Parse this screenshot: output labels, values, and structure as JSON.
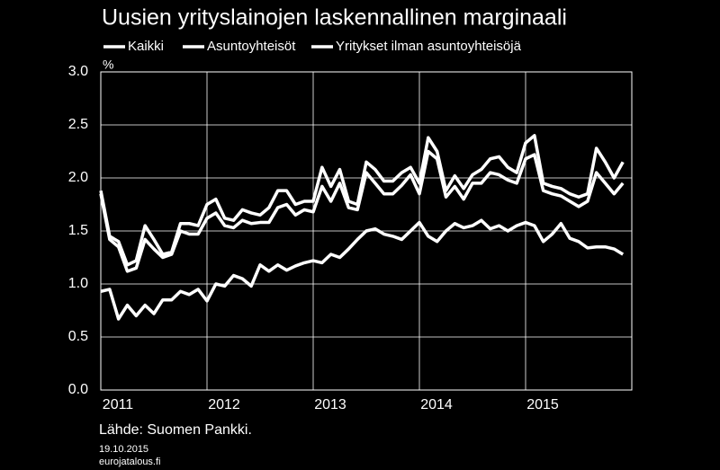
{
  "chart_data": {
    "type": "line",
    "title": "Uusien yrityslainojen laskennallinen marginaali",
    "y_unit": "%",
    "source": "Lähde: Suomen Pankki.",
    "date": "19.10.2015",
    "site": "eurojatalous.fi",
    "x": [
      0,
      1,
      2,
      3,
      4,
      5,
      6,
      7,
      8,
      9,
      10,
      11,
      12,
      13,
      14,
      15,
      16,
      17,
      18,
      19,
      20,
      21,
      22,
      23,
      24,
      25,
      26,
      27,
      28,
      29,
      30,
      31,
      32,
      33,
      34,
      35,
      36,
      37,
      38,
      39,
      40,
      41,
      42,
      43,
      44,
      45,
      46,
      47,
      48,
      49,
      50,
      51,
      52,
      53,
      54,
      55,
      56,
      57,
      58,
      59
    ],
    "xlim": [
      0,
      60
    ],
    "xticks": [
      {
        "value": 0,
        "label": "2011"
      },
      {
        "value": 12,
        "label": "2012"
      },
      {
        "value": 24,
        "label": "2013"
      },
      {
        "value": 36,
        "label": "2014"
      },
      {
        "value": 48,
        "label": "2015"
      }
    ],
    "ylim": [
      0,
      3
    ],
    "yticks": [
      {
        "value": 0,
        "label": "0.0"
      },
      {
        "value": 0.5,
        "label": "0.5"
      },
      {
        "value": 1,
        "label": "1.0"
      },
      {
        "value": 1.5,
        "label": "1.5"
      },
      {
        "value": 2,
        "label": "2.0"
      },
      {
        "value": 2.5,
        "label": "2.5"
      },
      {
        "value": 3,
        "label": "3.0"
      }
    ],
    "grid": true,
    "series": [
      {
        "name": "Kaikki",
        "color": "#ffffff",
        "values": [
          1.85,
          1.42,
          1.35,
          1.12,
          1.15,
          1.42,
          1.33,
          1.25,
          1.28,
          1.5,
          1.47,
          1.47,
          1.62,
          1.67,
          1.55,
          1.53,
          1.6,
          1.57,
          1.58,
          1.58,
          1.72,
          1.75,
          1.65,
          1.7,
          1.68,
          1.92,
          1.78,
          1.95,
          1.72,
          1.7,
          2.05,
          1.95,
          1.85,
          1.85,
          1.93,
          2.03,
          1.85,
          2.25,
          2.18,
          1.82,
          1.92,
          1.8,
          1.95,
          1.95,
          2.05,
          2.03,
          1.98,
          1.95,
          2.18,
          2.22,
          1.88,
          1.85,
          1.83,
          1.78,
          1.73,
          1.78,
          2.05,
          1.95,
          1.85,
          1.95
        ]
      },
      {
        "name": "Asuntoyhteisöt",
        "color": "#ffffff",
        "values": [
          0.93,
          0.95,
          0.67,
          0.8,
          0.7,
          0.8,
          0.72,
          0.85,
          0.85,
          0.93,
          0.9,
          0.95,
          0.84,
          1.0,
          0.98,
          1.08,
          1.05,
          0.98,
          1.18,
          1.12,
          1.18,
          1.13,
          1.17,
          1.2,
          1.22,
          1.2,
          1.28,
          1.25,
          1.33,
          1.42,
          1.5,
          1.52,
          1.47,
          1.45,
          1.42,
          1.5,
          1.58,
          1.45,
          1.4,
          1.5,
          1.57,
          1.53,
          1.55,
          1.6,
          1.52,
          1.55,
          1.5,
          1.55,
          1.58,
          1.55,
          1.4,
          1.47,
          1.57,
          1.43,
          1.4,
          1.34,
          1.35,
          1.35,
          1.33,
          1.28
        ]
      },
      {
        "name": "Yritykset ilman asuntoyhteisöjä",
        "color": "#ffffff",
        "values": [
          1.88,
          1.45,
          1.4,
          1.18,
          1.22,
          1.55,
          1.42,
          1.28,
          1.3,
          1.57,
          1.57,
          1.55,
          1.75,
          1.8,
          1.62,
          1.6,
          1.7,
          1.67,
          1.65,
          1.72,
          1.88,
          1.88,
          1.75,
          1.78,
          1.78,
          2.1,
          1.92,
          2.08,
          1.78,
          1.75,
          2.15,
          2.08,
          1.97,
          1.97,
          2.05,
          2.1,
          1.95,
          2.38,
          2.25,
          1.88,
          2.02,
          1.9,
          2.03,
          2.08,
          2.18,
          2.2,
          2.1,
          2.05,
          2.33,
          2.4,
          1.95,
          1.92,
          1.9,
          1.85,
          1.82,
          1.85,
          2.28,
          2.15,
          2.0,
          2.15
        ]
      }
    ]
  }
}
